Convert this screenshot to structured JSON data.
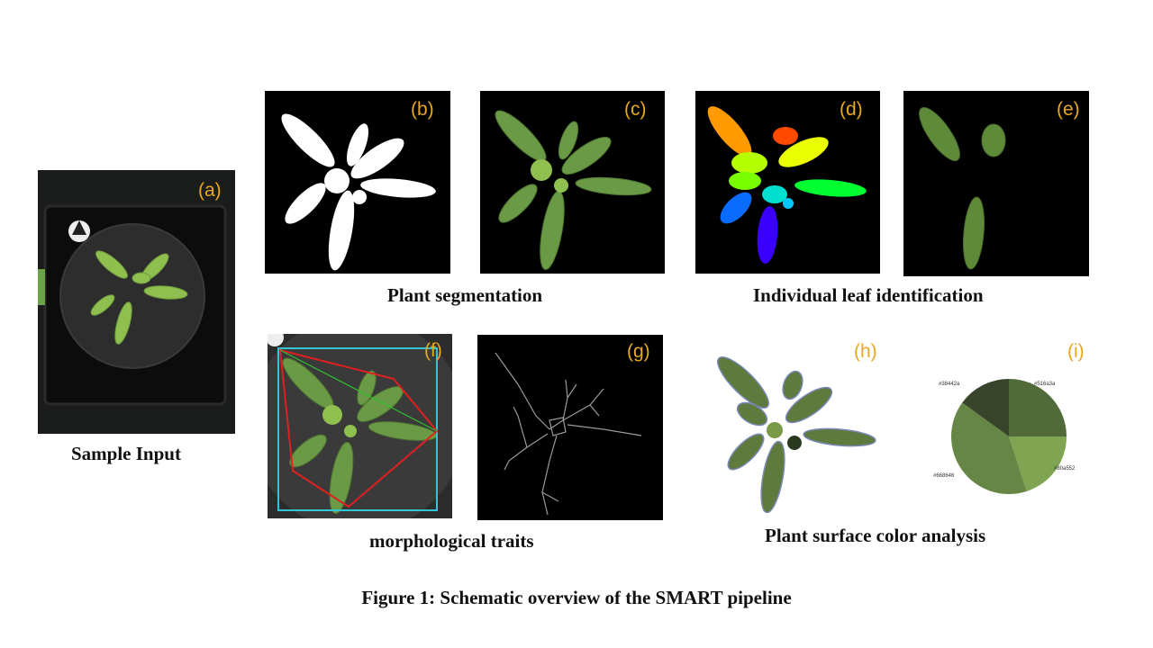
{
  "panels": {
    "a": {
      "label": "(a)"
    },
    "b": {
      "label": "(b)"
    },
    "c": {
      "label": "(c)"
    },
    "d": {
      "label": "(d)"
    },
    "e": {
      "label": "(e)"
    },
    "f": {
      "label": "(f)"
    },
    "g": {
      "label": "(g)"
    },
    "h": {
      "label": "(h)"
    },
    "i": {
      "label": "(i)"
    }
  },
  "captions": {
    "sample_input": "Sample Input",
    "plant_segmentation": "Plant segmentation",
    "leaf_identification": "Individual leaf identification",
    "morphological_traits": "morphological traits",
    "surface_color": "Plant surface color analysis"
  },
  "figure_title": "Figure 1: Schematic overview of the SMART pipeline",
  "colors": {
    "label": "#e6a81e",
    "leaf_green": "#5e8a3a",
    "leaf_light": "#8fbf4f"
  },
  "color_pie": {
    "slices": [
      {
        "hex": "#516a3a",
        "color": "#516a3a",
        "fraction": 0.25
      },
      {
        "hex": "#80a552",
        "color": "#80a552",
        "fraction": 0.2
      },
      {
        "hex": "#668646",
        "color": "#668646",
        "fraction": 0.4
      },
      {
        "hex": "#38442a",
        "color": "#38442a",
        "fraction": 0.15
      }
    ]
  }
}
